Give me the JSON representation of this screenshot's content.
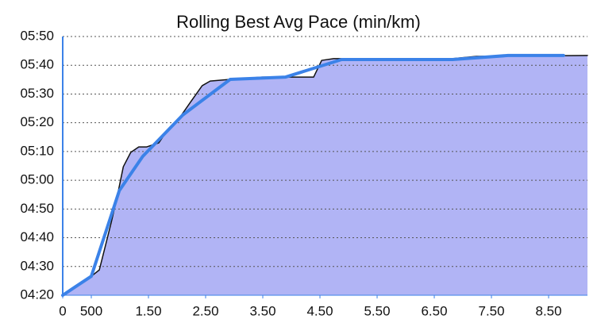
{
  "chart_data": {
    "type": "area",
    "title": "Rolling Best Avg Pace (min/km)",
    "xlim": [
      0,
      9.18
    ],
    "ylim": [
      260,
      350
    ],
    "xticks": [
      0,
      {
        "value": 0.5,
        "label": "500"
      },
      {
        "value": 1.5,
        "label": "1.50"
      },
      {
        "value": 2.5,
        "label": "2.50"
      },
      {
        "value": 3.5,
        "label": "3.50"
      },
      {
        "value": 4.5,
        "label": "4.50"
      },
      {
        "value": 5.5,
        "label": "5.50"
      },
      {
        "value": 6.5,
        "label": "6.50"
      },
      {
        "value": 7.5,
        "label": "7.50"
      },
      {
        "value": 8.5,
        "label": "8.50"
      }
    ],
    "yticks": [
      {
        "value": 260,
        "label": "04:20"
      },
      {
        "value": 270,
        "label": "04:30"
      },
      {
        "value": 280,
        "label": "04:40"
      },
      {
        "value": 290,
        "label": "04:50"
      },
      {
        "value": 300,
        "label": "05:00"
      },
      {
        "value": 310,
        "label": "05:10"
      },
      {
        "value": 320,
        "label": "05:20"
      },
      {
        "value": 330,
        "label": "05:30"
      },
      {
        "value": 340,
        "label": "05:40"
      },
      {
        "value": 350,
        "label": "05:50"
      }
    ],
    "grid": true,
    "series": [
      {
        "color": "#111111",
        "fill": "#b1b4f5",
        "x": [
          0,
          0.15,
          0.43,
          0.64,
          0.71,
          0.85,
          0.96,
          1.06,
          1.19,
          1.33,
          1.47,
          1.68,
          1.82,
          2.03,
          2.24,
          2.44,
          2.58,
          2.93,
          3.49,
          4.39,
          4.53,
          4.74,
          6.82,
          7.24,
          9.18
        ],
        "values": [
          260,
          261.7,
          265.5,
          268.8,
          274.3,
          285.4,
          295,
          304.7,
          309.7,
          311.6,
          311.6,
          313,
          317.1,
          321.3,
          327.3,
          332.9,
          334.5,
          335.1,
          335.9,
          335.9,
          341.7,
          342.3,
          342.3,
          343.1,
          343.4
        ]
      },
      {
        "color": "#3b82e8",
        "x": [
          0,
          0.18,
          0.5,
          0.99,
          1.4,
          2.1,
          2.93,
          3.9,
          4.88,
          6.82,
          7.79,
          8.76
        ],
        "values": [
          260,
          262.4,
          266.6,
          296.4,
          308.3,
          322.7,
          335.1,
          335.9,
          342,
          342,
          343.4,
          343.4
        ]
      }
    ]
  }
}
